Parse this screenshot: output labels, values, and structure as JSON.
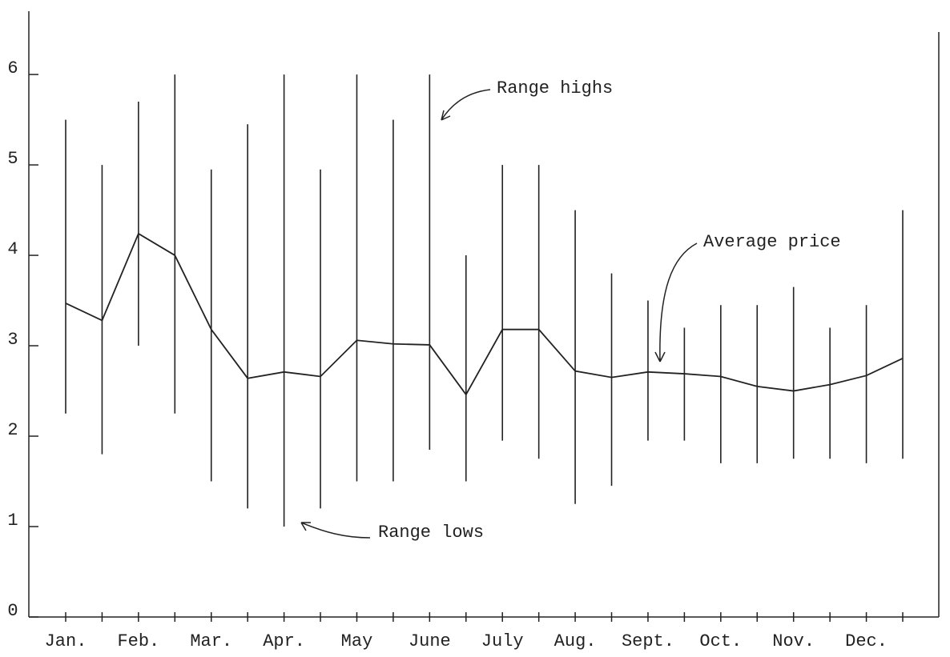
{
  "chart_data": {
    "type": "hilo",
    "categories": [
      "Jan.",
      null,
      "Feb.",
      null,
      "Mar.",
      null,
      "Apr.",
      null,
      "May",
      null,
      "June",
      null,
      "July",
      null,
      "Aug.",
      null,
      "Sept.",
      null,
      "Oct.",
      null,
      "Nov.",
      null,
      "Dec.",
      null
    ],
    "series": [
      {
        "name": "Range highs",
        "color": "#222",
        "values": [
          5.5,
          5.0,
          5.7,
          6.0,
          4.95,
          5.45,
          6.0,
          4.95,
          6.0,
          5.5,
          6.0,
          4.0,
          5.0,
          5.0,
          4.5,
          3.8,
          3.5,
          3.2,
          3.45,
          3.45,
          3.65,
          3.2,
          3.45,
          4.5
        ]
      },
      {
        "name": "Range lows",
        "color": "#222",
        "values": [
          2.25,
          1.8,
          3.0,
          2.25,
          1.5,
          1.2,
          1.0,
          1.2,
          1.5,
          1.5,
          1.85,
          1.5,
          1.95,
          1.75,
          1.25,
          1.45,
          1.95,
          1.95,
          1.7,
          1.7,
          1.75,
          1.75,
          1.7,
          1.75
        ]
      },
      {
        "name": "Average price",
        "color": "#222",
        "values": [
          3.47,
          3.28,
          4.24,
          4.0,
          3.18,
          2.64,
          2.71,
          2.66,
          3.06,
          3.02,
          3.01,
          2.46,
          3.18,
          3.18,
          2.72,
          2.65,
          2.71,
          2.69,
          2.66,
          2.55,
          2.5,
          2.57,
          2.67,
          2.86
        ]
      }
    ],
    "ylim": [
      0,
      6.7
    ],
    "yticks": [
      0,
      1,
      2,
      3,
      4,
      5,
      6
    ],
    "grid": false
  }
}
